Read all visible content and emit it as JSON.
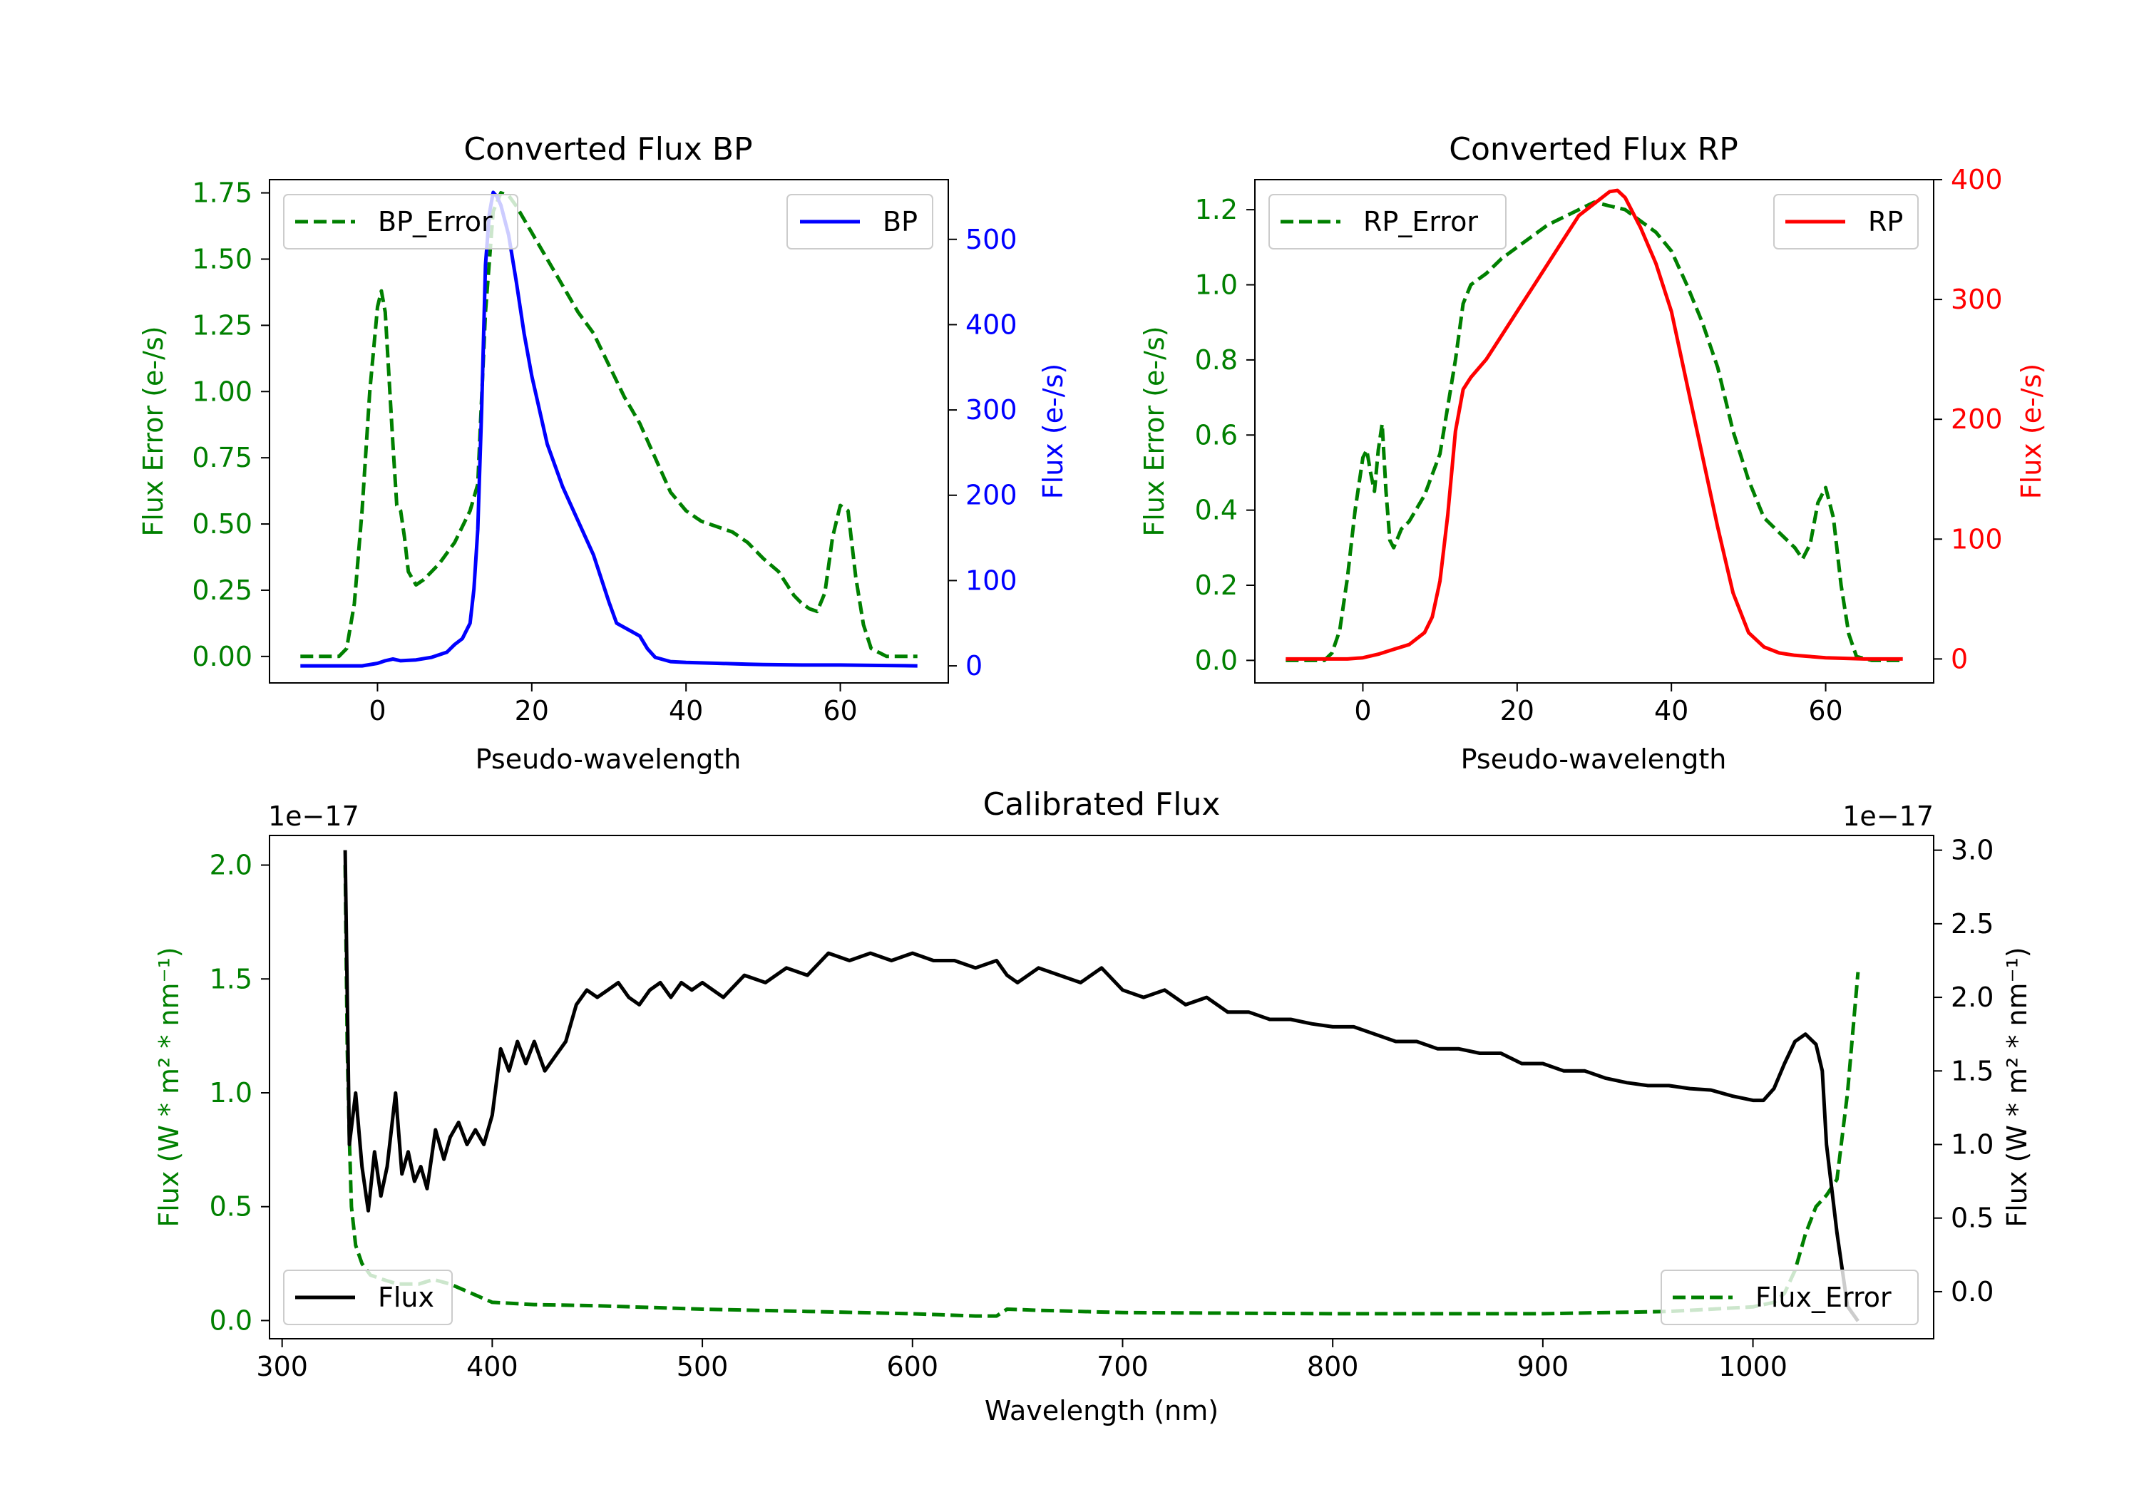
{
  "colors": {
    "green": "#008000",
    "blue": "#0000ff",
    "red": "#ff0000",
    "black": "#000000"
  },
  "chart_data": [
    {
      "id": "bp",
      "type": "line",
      "title": "Converted Flux BP",
      "xlabel": "Pseudo-wavelength",
      "ylabel_left": "Flux Error (e-/s)",
      "ylabel_right": "Flux (e-/s)",
      "xlim": [
        -14,
        74
      ],
      "ylim_left": [
        -0.1,
        1.8
      ],
      "ylim_right": [
        -20,
        570
      ],
      "xticks": [
        0,
        20,
        40,
        60
      ],
      "xtick_labels": [
        "0",
        "20",
        "40",
        "60"
      ],
      "yticks_left": [
        0,
        0.25,
        0.5,
        0.75,
        1.0,
        1.25,
        1.5,
        1.75
      ],
      "ytick_labels_left": [
        "0.00",
        "0.25",
        "0.50",
        "0.75",
        "1.00",
        "1.25",
        "1.50",
        "1.75"
      ],
      "yticks_right": [
        0,
        100,
        200,
        300,
        400,
        500
      ],
      "ytick_labels_right": [
        "0",
        "100",
        "200",
        "300",
        "400",
        "500"
      ],
      "series": [
        {
          "name": "BP_Error",
          "axis": "left",
          "color": "#008000",
          "dashed": true,
          "x": [
            -10,
            -5,
            -4,
            -3,
            -2,
            -1,
            0,
            0.5,
            1,
            2,
            2.5,
            3,
            3.5,
            4,
            5,
            6,
            8,
            10,
            12,
            13,
            14,
            15,
            16,
            17,
            18,
            20,
            22,
            24,
            26,
            28,
            30,
            32,
            34,
            36,
            38,
            40,
            42,
            44,
            46,
            48,
            50,
            52,
            54,
            55,
            56,
            57,
            58,
            59,
            60,
            61,
            62,
            63,
            64,
            66,
            70
          ],
          "y": [
            0,
            0,
            0.03,
            0.2,
            0.55,
            1.0,
            1.32,
            1.38,
            1.3,
            0.8,
            0.57,
            0.55,
            0.45,
            0.32,
            0.27,
            0.29,
            0.35,
            0.43,
            0.55,
            0.65,
            1.3,
            1.68,
            1.75,
            1.74,
            1.7,
            1.6,
            1.5,
            1.4,
            1.3,
            1.22,
            1.1,
            0.98,
            0.88,
            0.75,
            0.62,
            0.55,
            0.51,
            0.49,
            0.47,
            0.43,
            0.37,
            0.32,
            0.23,
            0.2,
            0.18,
            0.17,
            0.24,
            0.45,
            0.57,
            0.55,
            0.3,
            0.12,
            0.03,
            0,
            0
          ]
        },
        {
          "name": "BP",
          "axis": "right",
          "color": "#0000ff",
          "dashed": false,
          "x": [
            -10,
            -5,
            -2,
            0,
            1,
            2,
            3,
            5,
            7,
            9,
            10,
            11,
            12,
            12.5,
            13,
            13.5,
            14,
            14.5,
            15,
            15.5,
            16,
            17,
            18,
            19,
            20,
            22,
            24,
            26,
            28,
            30,
            31,
            32,
            34,
            35,
            36,
            38,
            40,
            44,
            48,
            50,
            55,
            60,
            65,
            70
          ],
          "y": [
            0,
            0,
            0,
            3,
            6,
            8,
            6,
            7,
            10,
            16,
            25,
            32,
            50,
            90,
            160,
            300,
            470,
            530,
            555,
            550,
            540,
            505,
            450,
            390,
            340,
            260,
            210,
            170,
            130,
            75,
            50,
            45,
            35,
            20,
            10,
            5,
            4,
            3,
            2,
            1.5,
            1,
            1,
            0.5,
            0
          ]
        }
      ]
    },
    {
      "id": "rp",
      "type": "line",
      "title": "Converted Flux RP",
      "xlabel": "Pseudo-wavelength",
      "ylabel_left": "Flux Error (e-/s)",
      "ylabel_right": "Flux (e-/s)",
      "xlim": [
        -14,
        74
      ],
      "ylim_left": [
        -0.06,
        1.28
      ],
      "ylim_right": [
        -20,
        400
      ],
      "xticks": [
        0,
        20,
        40,
        60
      ],
      "xtick_labels": [
        "0",
        "20",
        "40",
        "60"
      ],
      "yticks_left": [
        0,
        0.2,
        0.4,
        0.6,
        0.8,
        1.0,
        1.2
      ],
      "ytick_labels_left": [
        "0.0",
        "0.2",
        "0.4",
        "0.6",
        "0.8",
        "1.0",
        "1.2"
      ],
      "yticks_right": [
        0,
        100,
        200,
        300,
        400
      ],
      "ytick_labels_right": [
        "0",
        "100",
        "200",
        "300",
        "400"
      ],
      "series": [
        {
          "name": "RP_Error",
          "axis": "left",
          "color": "#008000",
          "dashed": true,
          "x": [
            -10,
            -5,
            -4,
            -3,
            -2,
            -1,
            0,
            0.5,
            1,
            1.5,
            2,
            2.5,
            3,
            3.5,
            4,
            5,
            6,
            8,
            10,
            12,
            13,
            14,
            16,
            18,
            20,
            22,
            24,
            26,
            28,
            30,
            32,
            34,
            36,
            38,
            40,
            42,
            44,
            46,
            48,
            50,
            52,
            54,
            56,
            57,
            58,
            59,
            60,
            61,
            62,
            63,
            64,
            66,
            70
          ],
          "y": [
            0,
            0,
            0.02,
            0.08,
            0.22,
            0.4,
            0.54,
            0.56,
            0.5,
            0.45,
            0.56,
            0.63,
            0.45,
            0.32,
            0.3,
            0.35,
            0.37,
            0.44,
            0.55,
            0.8,
            0.95,
            1.0,
            1.03,
            1.07,
            1.1,
            1.13,
            1.16,
            1.18,
            1.2,
            1.22,
            1.21,
            1.2,
            1.17,
            1.14,
            1.09,
            1.0,
            0.9,
            0.78,
            0.61,
            0.48,
            0.38,
            0.34,
            0.3,
            0.27,
            0.31,
            0.42,
            0.46,
            0.38,
            0.2,
            0.07,
            0.01,
            0,
            0
          ]
        },
        {
          "name": "RP",
          "axis": "right",
          "color": "#ff0000",
          "dashed": false,
          "x": [
            -10,
            -5,
            -2,
            0,
            2,
            4,
            6,
            8,
            9,
            10,
            11,
            12,
            13,
            14,
            16,
            18,
            20,
            22,
            24,
            26,
            28,
            30,
            32,
            33,
            34,
            36,
            38,
            40,
            42,
            44,
            46,
            48,
            50,
            52,
            54,
            56,
            60,
            65,
            70
          ],
          "y": [
            0,
            0,
            0,
            1,
            4,
            8,
            12,
            22,
            35,
            65,
            120,
            190,
            225,
            235,
            250,
            270,
            290,
            310,
            330,
            350,
            370,
            380,
            390,
            391,
            385,
            360,
            330,
            290,
            230,
            170,
            110,
            55,
            22,
            10,
            5,
            3,
            1,
            0,
            0
          ]
        }
      ]
    },
    {
      "id": "cal",
      "type": "line",
      "title": "Calibrated Flux",
      "xlabel": "Wavelength (nm)",
      "ylabel_left": "Flux (W * m² * nm⁻¹)",
      "ylabel_right": "Flux (W * m² * nm⁻¹)",
      "offset_left": "1e−17",
      "offset_right": "1e−17",
      "xlim": [
        294,
        1086
      ],
      "ylim_left": [
        -0.08,
        2.13
      ],
      "ylim_right": [
        -0.32,
        3.1
      ],
      "xticks": [
        300,
        400,
        500,
        600,
        700,
        800,
        900,
        1000
      ],
      "xtick_labels": [
        "300",
        "400",
        "500",
        "600",
        "700",
        "800",
        "900",
        "1000"
      ],
      "yticks_left": [
        0,
        0.5,
        1.0,
        1.5,
        2.0
      ],
      "ytick_labels_left": [
        "0.0",
        "0.5",
        "1.0",
        "1.5",
        "2.0"
      ],
      "yticks_right": [
        0,
        0.5,
        1.0,
        1.5,
        2.0,
        2.5,
        3.0
      ],
      "ytick_labels_right": [
        "0.0",
        "0.5",
        "1.0",
        "1.5",
        "2.0",
        "2.5",
        "3.0"
      ],
      "series": [
        {
          "name": "Flux_Error",
          "axis": "left",
          "color": "#008000",
          "dashed": true,
          "x": [
            330,
            331,
            332,
            333,
            335,
            338,
            342,
            348,
            355,
            365,
            372,
            380,
            390,
            400,
            420,
            450,
            500,
            550,
            600,
            630,
            640,
            645,
            660,
            700,
            800,
            900,
            960,
            1000,
            1010,
            1015,
            1020,
            1025,
            1030,
            1035,
            1040,
            1045,
            1050
          ],
          "y": [
            2.0,
            1.2,
            0.8,
            0.5,
            0.33,
            0.25,
            0.2,
            0.18,
            0.16,
            0.16,
            0.18,
            0.16,
            0.12,
            0.08,
            0.07,
            0.065,
            0.05,
            0.04,
            0.03,
            0.02,
            0.02,
            0.05,
            0.045,
            0.035,
            0.03,
            0.03,
            0.04,
            0.06,
            0.08,
            0.12,
            0.22,
            0.38,
            0.5,
            0.55,
            0.62,
            1.0,
            1.53
          ]
        },
        {
          "name": "Flux",
          "axis": "right",
          "color": "#000000",
          "dashed": false,
          "x": [
            330,
            332,
            335,
            338,
            341,
            344,
            347,
            350,
            354,
            357,
            360,
            363,
            366,
            369,
            373,
            377,
            380,
            384,
            388,
            392,
            396,
            400,
            404,
            408,
            412,
            416,
            420,
            425,
            430,
            435,
            440,
            445,
            450,
            455,
            460,
            465,
            470,
            475,
            480,
            485,
            490,
            495,
            500,
            510,
            520,
            530,
            540,
            550,
            560,
            570,
            580,
            590,
            600,
            610,
            620,
            630,
            640,
            645,
            650,
            660,
            670,
            680,
            690,
            700,
            710,
            720,
            730,
            740,
            750,
            760,
            770,
            780,
            790,
            800,
            810,
            820,
            830,
            840,
            850,
            860,
            870,
            880,
            890,
            900,
            910,
            920,
            930,
            940,
            950,
            960,
            970,
            980,
            990,
            1000,
            1005,
            1010,
            1015,
            1020,
            1025,
            1030,
            1033,
            1035,
            1040,
            1045,
            1050
          ],
          "y": [
            3.0,
            1.0,
            1.35,
            0.85,
            0.55,
            0.95,
            0.65,
            0.85,
            1.35,
            0.8,
            0.95,
            0.75,
            0.85,
            0.7,
            1.1,
            0.9,
            1.05,
            1.15,
            1.0,
            1.1,
            1.0,
            1.2,
            1.65,
            1.5,
            1.7,
            1.55,
            1.7,
            1.5,
            1.6,
            1.7,
            1.95,
            2.05,
            2.0,
            2.05,
            2.1,
            2.0,
            1.95,
            2.05,
            2.1,
            2.0,
            2.1,
            2.05,
            2.1,
            2.0,
            2.15,
            2.1,
            2.2,
            2.15,
            2.3,
            2.25,
            2.3,
            2.25,
            2.3,
            2.25,
            2.25,
            2.2,
            2.25,
            2.15,
            2.1,
            2.2,
            2.15,
            2.1,
            2.2,
            2.05,
            2.0,
            2.05,
            1.95,
            2.0,
            1.9,
            1.9,
            1.85,
            1.85,
            1.82,
            1.8,
            1.8,
            1.75,
            1.7,
            1.7,
            1.65,
            1.65,
            1.62,
            1.62,
            1.55,
            1.55,
            1.5,
            1.5,
            1.45,
            1.42,
            1.4,
            1.4,
            1.38,
            1.37,
            1.33,
            1.3,
            1.3,
            1.38,
            1.55,
            1.7,
            1.75,
            1.68,
            1.5,
            1.0,
            0.4,
            -0.1,
            -0.2
          ]
        }
      ]
    }
  ]
}
